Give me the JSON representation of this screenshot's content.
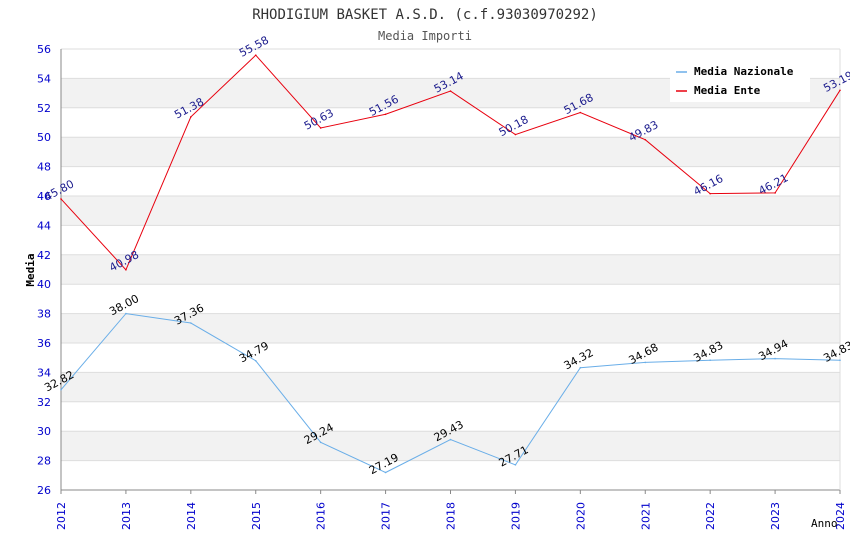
{
  "chart_data": {
    "type": "line",
    "title": "RHODIGIUM BASKET A.S.D. (c.f.93030970292)",
    "subtitle": "Media Importi",
    "xlabel": "Anno",
    "ylabel": "Media",
    "categories": [
      "2012",
      "2013",
      "2014",
      "2015",
      "2016",
      "2017",
      "2018",
      "2019",
      "2020",
      "2021",
      "2022",
      "2023",
      "2024"
    ],
    "ylim": [
      26,
      56
    ],
    "yticks": [
      26,
      28,
      30,
      32,
      34,
      36,
      38,
      40,
      42,
      44,
      46,
      48,
      50,
      52,
      54,
      56
    ],
    "legend_position": "top-right",
    "series": [
      {
        "name": "Media Nazionale",
        "color": "#6aaee8",
        "label_color": "#000000",
        "values": [
          32.82,
          38.0,
          37.36,
          34.79,
          29.24,
          27.19,
          29.43,
          27.71,
          34.32,
          34.68,
          34.83,
          34.94,
          34.83
        ],
        "labels": [
          "32.82",
          "38.00",
          "37.36",
          "34.79",
          "29.24",
          "27.19",
          "29.43",
          "27.71",
          "34.32",
          "34.68",
          "34.83",
          "34.94",
          "34.83"
        ]
      },
      {
        "name": "Media Ente",
        "color": "#e8000e",
        "label_color": "#1a1a8c",
        "values": [
          45.8,
          40.98,
          51.38,
          55.58,
          50.63,
          51.56,
          53.14,
          50.18,
          51.68,
          49.83,
          46.16,
          46.21,
          53.19
        ],
        "labels": [
          "45.80",
          "40.98",
          "51.38",
          "55.58",
          "50.63",
          "51.56",
          "53.14",
          "50.18",
          "51.68",
          "49.83",
          "46.16",
          "46.21",
          "53.19"
        ]
      }
    ]
  },
  "colors": {
    "axis_tick_text": "#0000cc",
    "band_fill": "#f2f2f2",
    "grid_line": "#dddddd",
    "axis_line": "#888888"
  }
}
